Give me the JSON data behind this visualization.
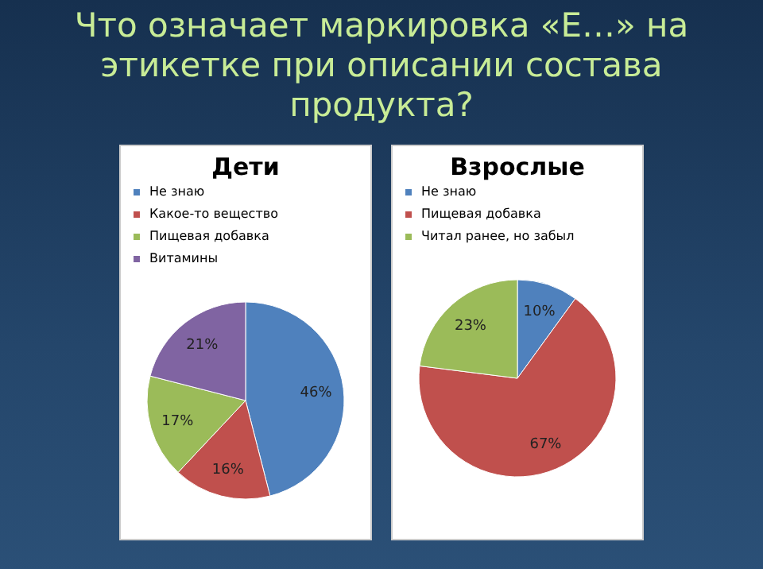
{
  "chart_data": [
    {
      "type": "other",
      "title": "Что означает маркировка «Е…» на этикетке при  описании состава продукта?"
    },
    {
      "type": "pie",
      "title": "Дети",
      "legend": "top",
      "categories": [
        "Не знаю",
        "Какое-то вещество",
        "Пищевая добавка",
        "Витамины"
      ],
      "values": [
        46,
        16,
        17,
        21
      ],
      "colors": [
        "#4f81bd",
        "#c0504d",
        "#9bbb59",
        "#8064a2"
      ],
      "value_labels": [
        "46%",
        "16%",
        "17%",
        "21%"
      ]
    },
    {
      "type": "pie",
      "title": "Взрослые",
      "legend": "top",
      "categories": [
        "Не знаю",
        "Пищевая добавка",
        "Читал ранее, но забыл"
      ],
      "values": [
        10,
        67,
        23
      ],
      "colors": [
        "#4f81bd",
        "#c0504d",
        "#9bbb59"
      ],
      "value_labels": [
        "10%",
        "67%",
        "23%"
      ]
    }
  ]
}
